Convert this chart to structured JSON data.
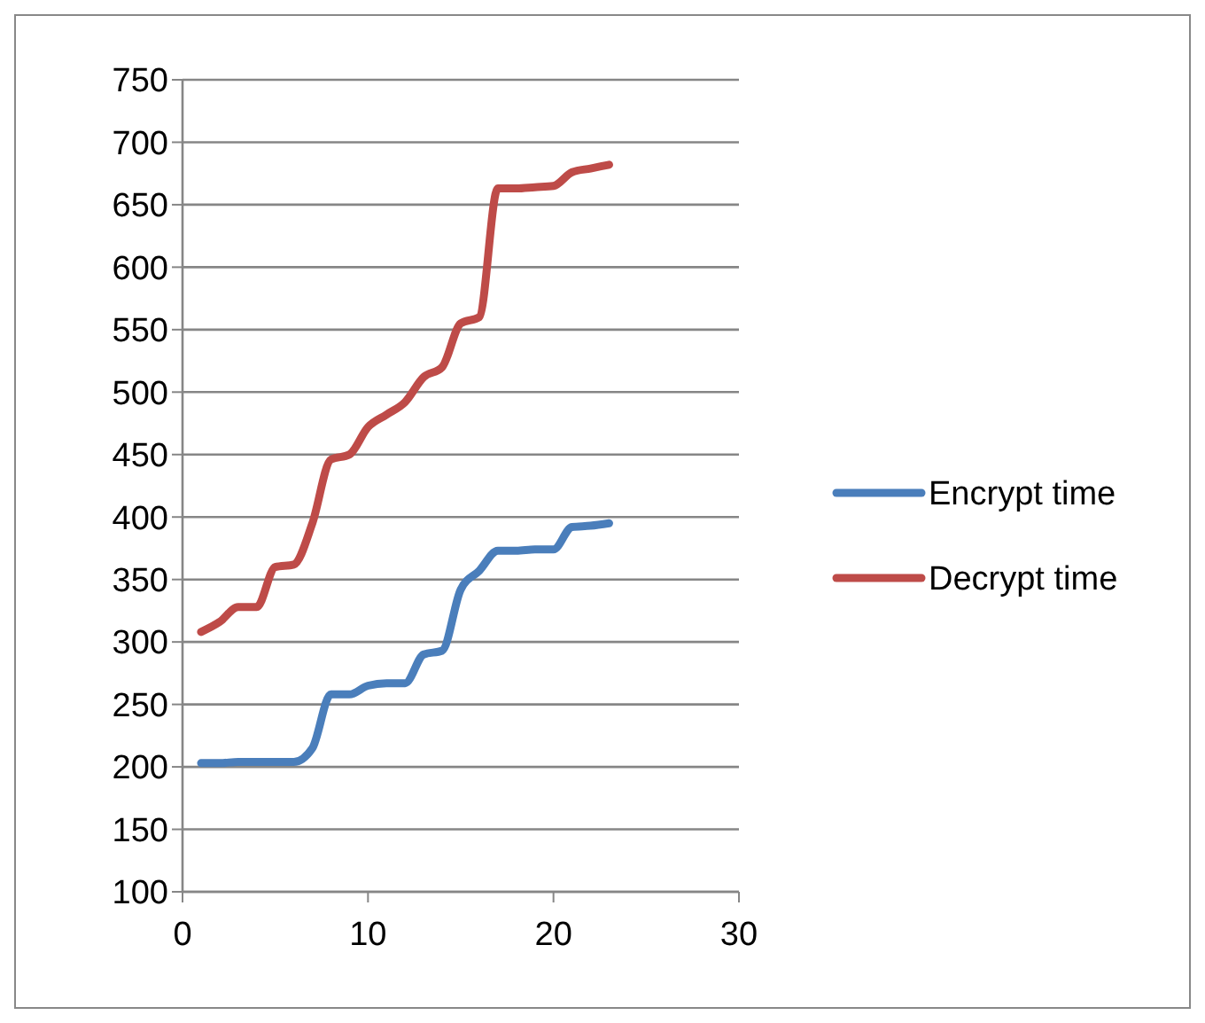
{
  "chart_data": {
    "type": "line",
    "x": [
      1,
      2,
      3,
      4,
      5,
      6,
      7,
      8,
      9,
      10,
      11,
      12,
      13,
      14,
      15,
      16,
      17,
      18,
      19,
      20,
      21,
      22,
      23
    ],
    "series": [
      {
        "name": "Encrypt time",
        "color": "#4a7ebb",
        "values": [
          203,
          203,
          204,
          204,
          204,
          204,
          215,
          258,
          258,
          265,
          267,
          267,
          290,
          293,
          342,
          357,
          373,
          373,
          374,
          374,
          392,
          393,
          395
        ]
      },
      {
        "name": "Decrypt time",
        "color": "#be4b48",
        "values": [
          308,
          316,
          328,
          328,
          360,
          362,
          395,
          446,
          450,
          472,
          482,
          492,
          512,
          520,
          555,
          560,
          663,
          663,
          664,
          665,
          676,
          679,
          682
        ]
      }
    ],
    "xlim": [
      0,
      30
    ],
    "xticks": [
      0,
      10,
      20,
      30
    ],
    "ylim": [
      100,
      750
    ],
    "yticks": [
      100,
      150,
      200,
      250,
      300,
      350,
      400,
      450,
      500,
      550,
      600,
      650,
      700,
      750
    ],
    "grid": "y",
    "legend": "right",
    "marker": "none",
    "line_style": "solid"
  }
}
